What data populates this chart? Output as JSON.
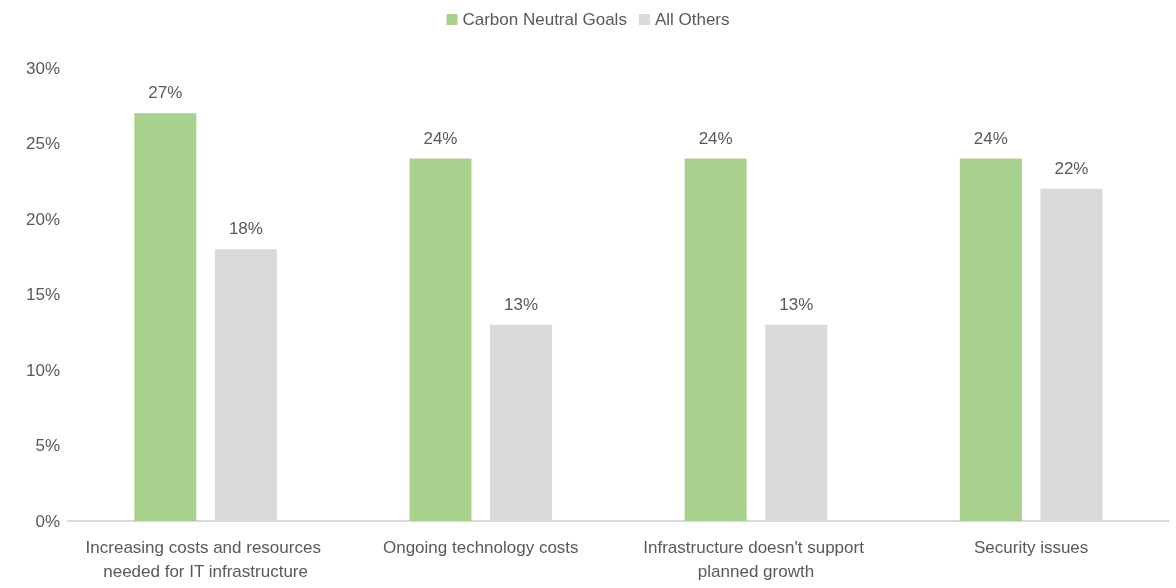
{
  "chart_data": {
    "type": "bar",
    "categories": [
      "Increasing costs and resources needed for IT infrastructure",
      "Ongoing technology costs",
      "Infrastructure doesn't support planned growth",
      "Security issues"
    ],
    "series": [
      {
        "name": "Carbon Neutral Goals",
        "color": "#a9d18e",
        "values": [
          27,
          24,
          24,
          24
        ],
        "value_labels": [
          "27%",
          "24%",
          "24%",
          "24%"
        ]
      },
      {
        "name": "All Others",
        "color": "#d9d9d9",
        "values": [
          18,
          13,
          13,
          22
        ],
        "value_labels": [
          "18%",
          "13%",
          "13%",
          "22%"
        ]
      }
    ],
    "ylim": [
      0,
      30
    ],
    "yticks": [
      {
        "value": 0,
        "label": "0%"
      },
      {
        "value": 5,
        "label": "5%"
      },
      {
        "value": 10,
        "label": "10%"
      },
      {
        "value": 15,
        "label": "15%"
      },
      {
        "value": 20,
        "label": "20%"
      },
      {
        "value": 25,
        "label": "25%"
      },
      {
        "value": 30,
        "label": "30%"
      }
    ],
    "grid": false,
    "legend": "top"
  }
}
